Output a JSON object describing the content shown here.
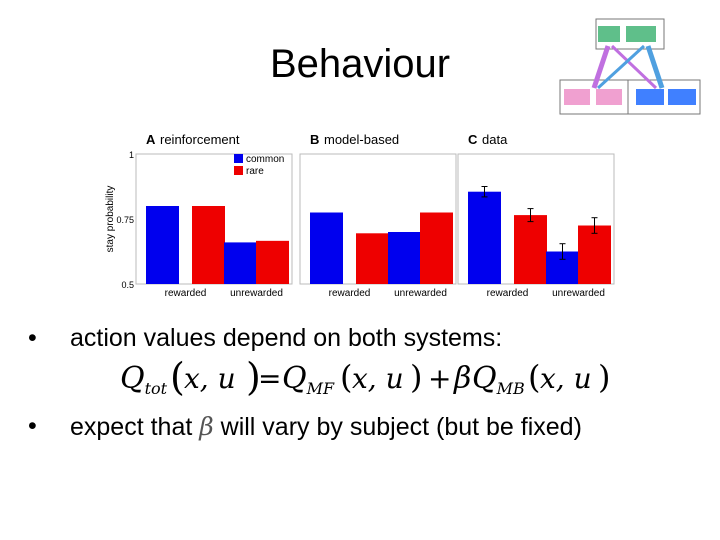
{
  "title": "Behaviour",
  "chart_data": [
    {
      "type": "bar",
      "panel_letter": "A",
      "title": "reinforcement",
      "categories": [
        "rewarded",
        "unrewarded"
      ],
      "series": [
        {
          "name": "common",
          "values": [
            0.8,
            0.66
          ]
        },
        {
          "name": "rare",
          "values": [
            0.8,
            0.666
          ]
        }
      ],
      "ylabel": "stay probability",
      "yticks": [
        "0.5",
        "0.75",
        "1"
      ],
      "ylim": [
        0.5,
        1
      ],
      "legend": "top-right",
      "colors": {
        "common": "#0000ee",
        "rare": "#ee0000"
      }
    },
    {
      "type": "bar",
      "panel_letter": "B",
      "title": "model-based",
      "categories": [
        "rewarded",
        "unrewarded"
      ],
      "series": [
        {
          "name": "common",
          "values": [
            0.775,
            0.7
          ]
        },
        {
          "name": "rare",
          "values": [
            0.695,
            0.775
          ]
        }
      ],
      "ylim": [
        0.5,
        1
      ],
      "colors": {
        "common": "#0000ee",
        "rare": "#ee0000"
      }
    },
    {
      "type": "bar",
      "panel_letter": "C",
      "title": "data",
      "categories": [
        "rewarded",
        "unrewarded"
      ],
      "series": [
        {
          "name": "common",
          "values": [
            0.855,
            0.625
          ],
          "error": [
            0.02,
            0.03
          ]
        },
        {
          "name": "rare",
          "values": [
            0.765,
            0.725
          ],
          "error": [
            0.025,
            0.03
          ]
        }
      ],
      "ylim": [
        0.5,
        1
      ],
      "colors": {
        "common": "#0000ee",
        "rare": "#ee0000"
      }
    }
  ],
  "bullets": [
    {
      "text": "action values depend on both systems:"
    },
    {
      "text_before": "expect that ",
      "symbol": "β",
      "text_after": " will vary by subject (but be fixed)"
    }
  ],
  "equation": {
    "q": "Q",
    "tot": "tot",
    "mf": "MF",
    "mb": "MB",
    "args": "x, u",
    "equals": "=",
    "plus": "+",
    "beta": "β"
  }
}
